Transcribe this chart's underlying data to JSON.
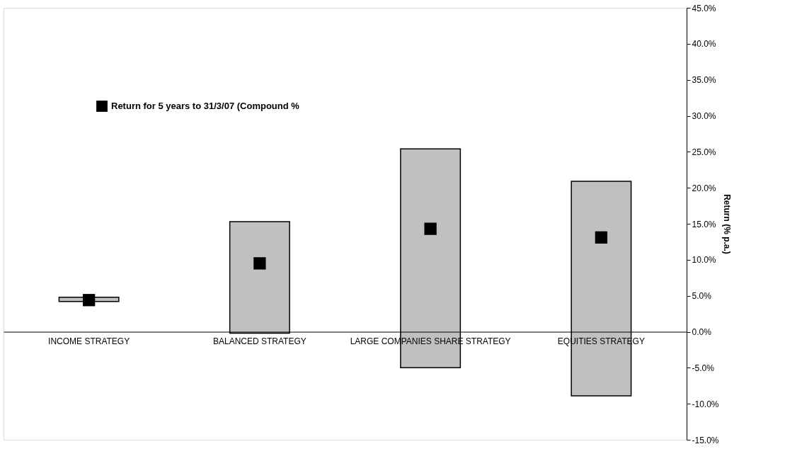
{
  "chart_data": {
    "type": "bar",
    "categories": [
      "INCOME STRATEGY",
      "BALANCED STRATEGY",
      "LARGE COMPANIES SHARE STRATEGY",
      "EQUITIES STRATEGY"
    ],
    "ylabel": "Return (% p.a.)",
    "ylim": [
      -15,
      45
    ],
    "yticks": [
      {
        "value": -15,
        "label": "-15.0%"
      },
      {
        "value": -10,
        "label": "-10.0%"
      },
      {
        "value": -5,
        "label": "-5.0%"
      },
      {
        "value": 0,
        "label": "0.0%"
      },
      {
        "value": 5,
        "label": "5.0%"
      },
      {
        "value": 10,
        "label": "10.0%"
      },
      {
        "value": 15,
        "label": "15.0%"
      },
      {
        "value": 20,
        "label": "20.0%"
      },
      {
        "value": 25,
        "label": "25.0%"
      },
      {
        "value": 30,
        "label": "30.0%"
      },
      {
        "value": 35,
        "label": "35.0%"
      },
      {
        "value": 40,
        "label": "40.0%"
      },
      {
        "value": 45,
        "label": "45.0%"
      }
    ],
    "series": [
      {
        "color": "#c0c0c0",
        "base": [
          4.2,
          -0.2,
          -5.0,
          -8.9
        ],
        "values": [
          0.6,
          15.5,
          30.4,
          29.8
        ]
      },
      {
        "type": "scatter",
        "name": "Return for 5 years to 31/3/07 (Compound %",
        "color": "#000000",
        "x": [
          "INCOME STRATEGY",
          "BALANCED STRATEGY",
          "LARGE COMPANIES SHARE STRATEGY",
          "EQUITIES STRATEGY"
        ],
        "values": [
          4.4,
          9.5,
          14.3,
          13.1
        ]
      }
    ],
    "marker": "square",
    "grid": false,
    "legend": "top left"
  }
}
